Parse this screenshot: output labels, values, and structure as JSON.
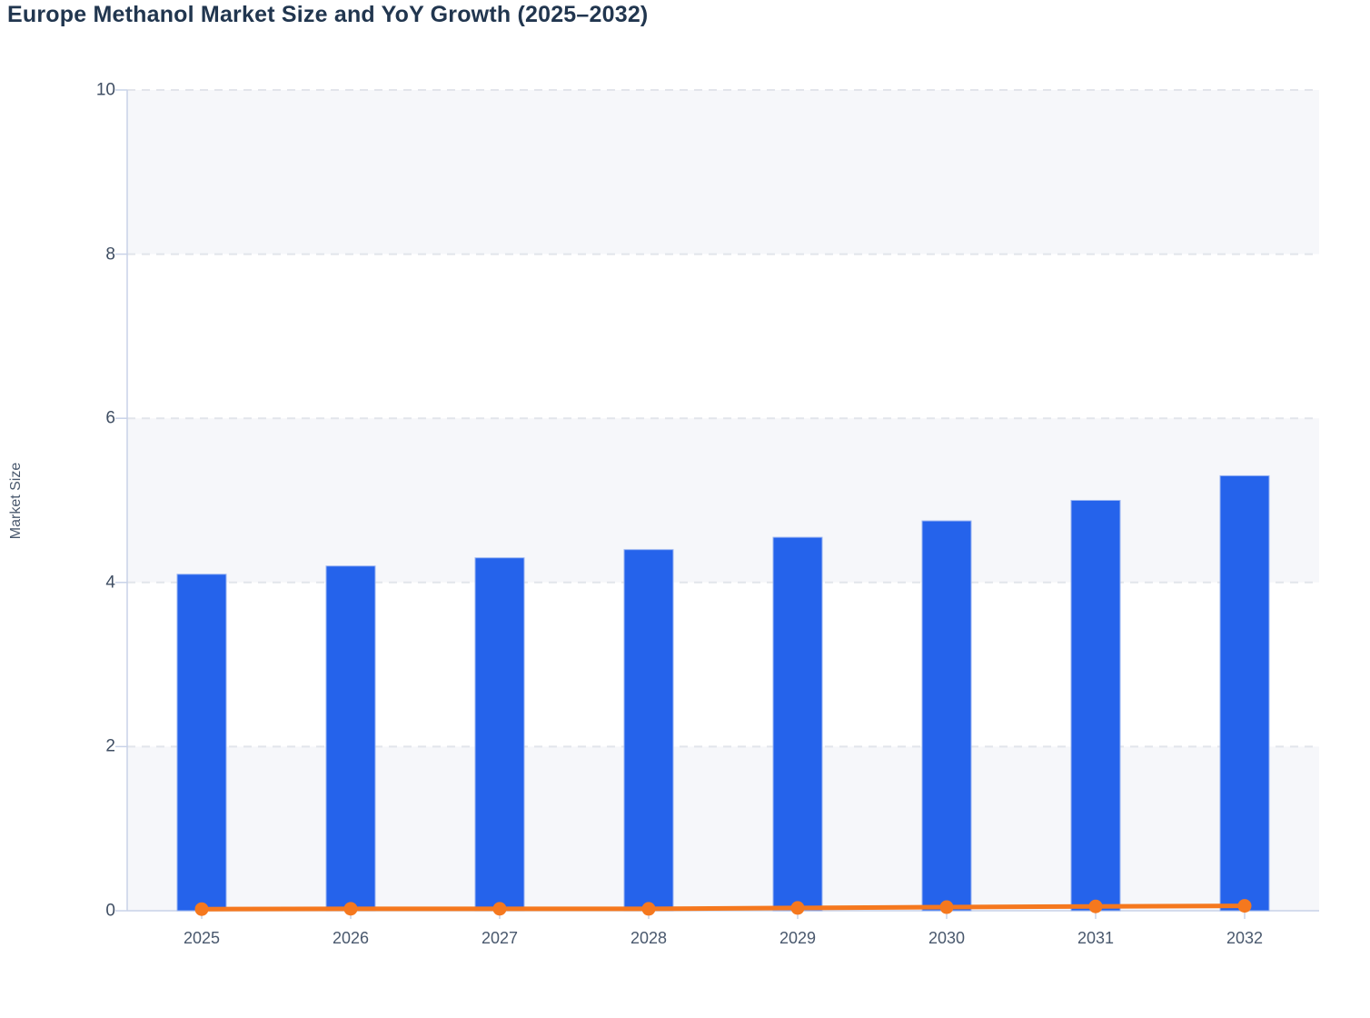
{
  "title": "Europe Methanol Market Size and YoY Growth (2025–2032)",
  "y_axis_title": "Market Size",
  "chart_data": {
    "type": "bar",
    "title": "Europe Methanol Market Size and YoY Growth (2025–2032)",
    "categories": [
      "2025",
      "2026",
      "2027",
      "2028",
      "2029",
      "2030",
      "2031",
      "2032"
    ],
    "series": [
      {
        "name": "Market Size",
        "type": "bar",
        "color": "#2563eb",
        "values": [
          4.1,
          4.2,
          4.3,
          4.4,
          4.55,
          4.75,
          5.0,
          5.3
        ]
      },
      {
        "name": "YoY Growth",
        "type": "line",
        "color": "#f5781e",
        "values": [
          0.02,
          0.024,
          0.024,
          0.023,
          0.034,
          0.044,
          0.053,
          0.06
        ]
      }
    ],
    "xlabel": "",
    "ylabel": "Market Size",
    "ylim": [
      0,
      10
    ],
    "yticks": [
      0,
      2,
      4,
      6,
      8,
      10
    ],
    "ytick_labels": [
      "0",
      "2",
      "4",
      "6",
      "8",
      "10"
    ],
    "grid": "horizontal-dashed",
    "legend_position": "none",
    "plot_bands": {
      "fill": "#f6f7fa",
      "ranges": [
        [
          0,
          2
        ],
        [
          4,
          6
        ],
        [
          8,
          10
        ]
      ]
    }
  },
  "colors": {
    "bar": "#2563eb",
    "bar_border": "#9ab5f2",
    "line": "#f5781e",
    "axis": "#c8d2e8",
    "grid": "#e2e5eb",
    "band": "#f6f7fa",
    "title_text": "#21364f",
    "ytick_text": "#3f4e63",
    "xtick_text": "#49586d"
  }
}
